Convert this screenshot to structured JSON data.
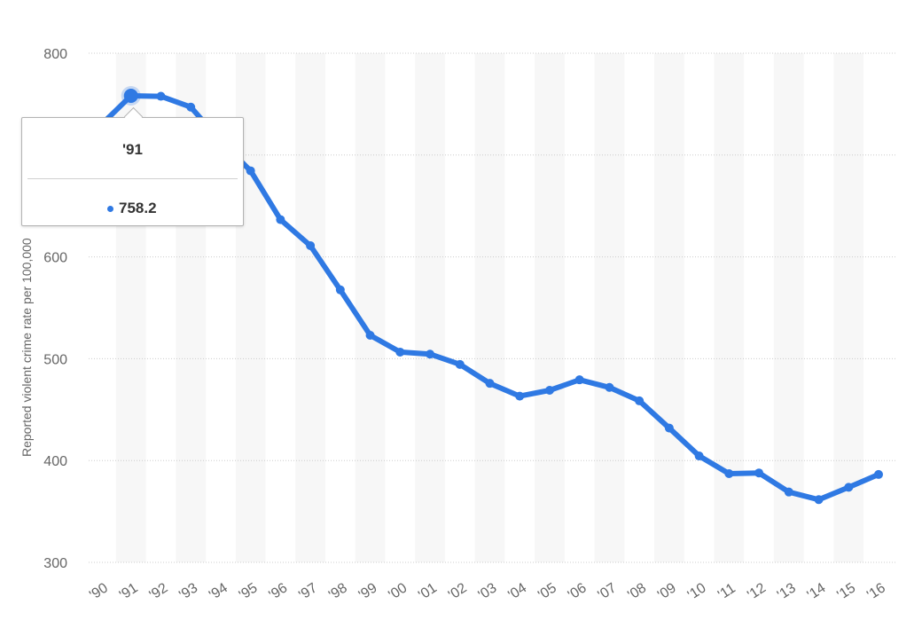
{
  "chart_data": {
    "type": "line",
    "title": "",
    "xlabel": "",
    "ylabel": "Reported violent crime rate per 100,000",
    "categories": [
      "'90",
      "'91",
      "'92",
      "'93",
      "'94",
      "'95",
      "'96",
      "'97",
      "'98",
      "'99",
      "'00",
      "'01",
      "'02",
      "'03",
      "'04",
      "'05",
      "'06",
      "'07",
      "'08",
      "'09",
      "'10",
      "'11",
      "'12",
      "'13",
      "'14",
      "'15",
      "'16"
    ],
    "series": [
      {
        "name": "Reported violent crime rate",
        "color": "#2f79e3",
        "values": [
          729.6,
          758.2,
          757.7,
          747.1,
          713.6,
          684.5,
          636.6,
          611.0,
          567.6,
          523.0,
          506.5,
          504.5,
          494.4,
          475.8,
          463.2,
          469.0,
          479.3,
          471.8,
          458.6,
          431.9,
          404.5,
          387.1,
          387.8,
          369.1,
          361.6,
          373.7,
          386.3
        ]
      }
    ],
    "ylim": [
      300,
      800
    ],
    "yticks": [
      300,
      400,
      500,
      600,
      700,
      800
    ],
    "grid": true,
    "highlight_index": 1
  },
  "tooltip": {
    "label": "'91",
    "value": "758.2"
  }
}
